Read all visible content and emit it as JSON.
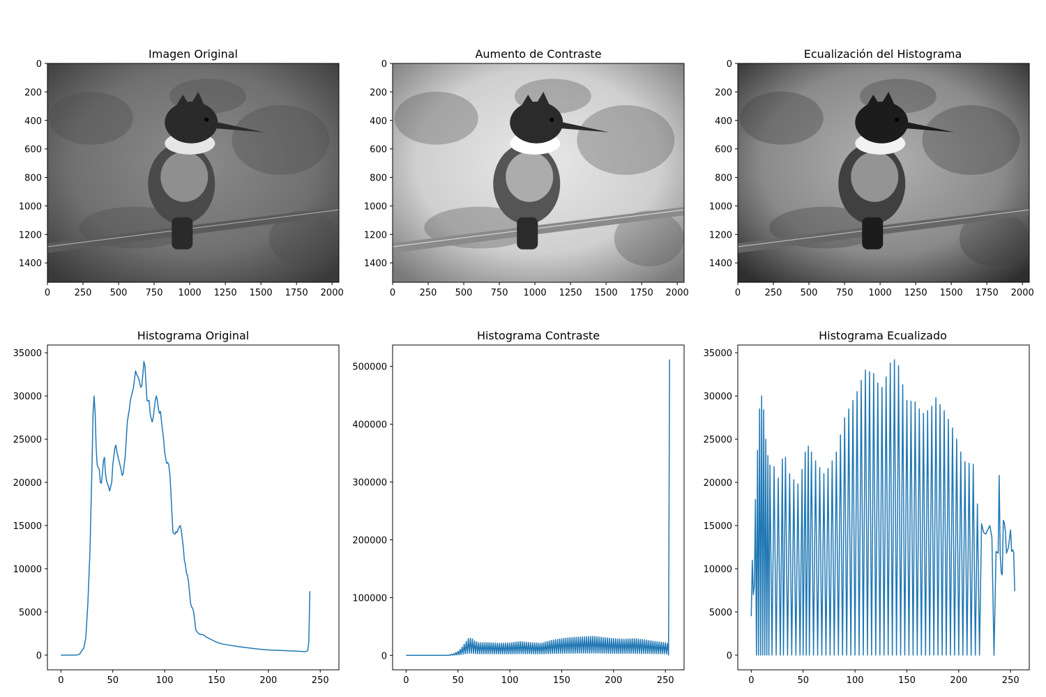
{
  "images": [
    {
      "title": "Imagen Original",
      "variant": "original",
      "xticks": [
        "0",
        "250",
        "500",
        "750",
        "1000",
        "1250",
        "1500",
        "1750",
        "2000"
      ],
      "yticks": [
        "0",
        "200",
        "400",
        "600",
        "800",
        "1000",
        "1200",
        "1400"
      ],
      "xlim": [
        0,
        2048
      ],
      "ylim": [
        1536,
        0
      ]
    },
    {
      "title": "Aumento de Contraste",
      "variant": "contrast",
      "xticks": [
        "0",
        "250",
        "500",
        "750",
        "1000",
        "1250",
        "1500",
        "1750",
        "2000"
      ],
      "yticks": [
        "0",
        "200",
        "400",
        "600",
        "800",
        "1000",
        "1200",
        "1400"
      ],
      "xlim": [
        0,
        2048
      ],
      "ylim": [
        1536,
        0
      ]
    },
    {
      "title": "Ecualización del Histograma",
      "variant": "equalized",
      "xticks": [
        "0",
        "250",
        "500",
        "750",
        "1000",
        "1250",
        "1500",
        "1750",
        "2000"
      ],
      "yticks": [
        "0",
        "200",
        "400",
        "600",
        "800",
        "1000",
        "1200",
        "1400"
      ],
      "xlim": [
        0,
        2048
      ],
      "ylim": [
        1536,
        0
      ]
    }
  ],
  "chart_data": [
    {
      "type": "line",
      "title": "Histograma Original",
      "xlabel": "",
      "ylabel": "",
      "xlim": [
        -13,
        268
      ],
      "ylim": [
        -1700,
        35900
      ],
      "xticks": [
        0,
        50,
        100,
        150,
        200,
        250
      ],
      "yticks": [
        0,
        5000,
        10000,
        15000,
        20000,
        25000,
        30000,
        35000
      ],
      "color": "#1f77b4",
      "points": [
        [
          0,
          0
        ],
        [
          15,
          0
        ],
        [
          18,
          100
        ],
        [
          20,
          500
        ],
        [
          22,
          800
        ],
        [
          24,
          2000
        ],
        [
          26,
          6000
        ],
        [
          28,
          12000
        ],
        [
          30,
          22000
        ],
        [
          31,
          28000
        ],
        [
          32,
          30000
        ],
        [
          33,
          28000
        ],
        [
          34,
          24000
        ],
        [
          35,
          22000
        ],
        [
          37,
          21500
        ],
        [
          38,
          20000
        ],
        [
          39,
          19900
        ],
        [
          40,
          21000
        ],
        [
          41,
          22500
        ],
        [
          42,
          22900
        ],
        [
          43,
          21000
        ],
        [
          44,
          20200
        ],
        [
          45,
          19800
        ],
        [
          46,
          19500
        ],
        [
          47,
          19000
        ],
        [
          48,
          19500
        ],
        [
          49,
          20000
        ],
        [
          50,
          22000
        ],
        [
          52,
          24000
        ],
        [
          53,
          24300
        ],
        [
          54,
          23500
        ],
        [
          56,
          22500
        ],
        [
          58,
          21500
        ],
        [
          59,
          20800
        ],
        [
          60,
          21000
        ],
        [
          62,
          23000
        ],
        [
          64,
          27000
        ],
        [
          66,
          28500
        ],
        [
          67,
          29500
        ],
        [
          68,
          30000
        ],
        [
          69,
          30500
        ],
        [
          70,
          31000
        ],
        [
          71,
          32000
        ],
        [
          72,
          32900
        ],
        [
          73,
          32500
        ],
        [
          74,
          32300
        ],
        [
          75,
          32000
        ],
        [
          76,
          31500
        ],
        [
          77,
          31000
        ],
        [
          78,
          31200
        ],
        [
          79,
          32500
        ],
        [
          80,
          34000
        ],
        [
          81,
          33500
        ],
        [
          82,
          31500
        ],
        [
          83,
          29500
        ],
        [
          84,
          29400
        ],
        [
          85,
          29500
        ],
        [
          86,
          28000
        ],
        [
          87,
          27400
        ],
        [
          88,
          27000
        ],
        [
          89,
          27500
        ],
        [
          90,
          28500
        ],
        [
          91,
          29500
        ],
        [
          92,
          30000
        ],
        [
          93,
          29500
        ],
        [
          94,
          28500
        ],
        [
          95,
          28000
        ],
        [
          96,
          28200
        ],
        [
          97,
          27000
        ],
        [
          98,
          26000
        ],
        [
          99,
          25000
        ],
        [
          100,
          23500
        ],
        [
          101,
          22800
        ],
        [
          102,
          22200
        ],
        [
          103,
          22300
        ],
        [
          104,
          22000
        ],
        [
          105,
          21000
        ],
        [
          106,
          19000
        ],
        [
          107,
          16500
        ],
        [
          108,
          14200
        ],
        [
          109,
          14100
        ],
        [
          110,
          14000
        ],
        [
          111,
          14300
        ],
        [
          112,
          14200
        ],
        [
          113,
          14600
        ],
        [
          114,
          14800
        ],
        [
          115,
          15000
        ],
        [
          116,
          14500
        ],
        [
          117,
          13500
        ],
        [
          118,
          12500
        ],
        [
          119,
          11000
        ],
        [
          120,
          10500
        ],
        [
          121,
          9500
        ],
        [
          122,
          9200
        ],
        [
          123,
          8500
        ],
        [
          124,
          7200
        ],
        [
          125,
          6000
        ],
        [
          126,
          5600
        ],
        [
          127,
          5400
        ],
        [
          128,
          5000
        ],
        [
          129,
          4000
        ],
        [
          130,
          2900
        ],
        [
          132,
          2600
        ],
        [
          134,
          2400
        ],
        [
          136,
          2400
        ],
        [
          138,
          2300
        ],
        [
          140,
          2100
        ],
        [
          145,
          1800
        ],
        [
          150,
          1500
        ],
        [
          155,
          1300
        ],
        [
          160,
          1200
        ],
        [
          170,
          1000
        ],
        [
          180,
          850
        ],
        [
          190,
          700
        ],
        [
          200,
          600
        ],
        [
          210,
          550
        ],
        [
          220,
          500
        ],
        [
          230,
          450
        ],
        [
          235,
          400
        ],
        [
          237,
          450
        ],
        [
          238,
          600
        ],
        [
          239,
          1500
        ],
        [
          240,
          7400
        ]
      ]
    },
    {
      "type": "line",
      "title": "Histograma Contraste",
      "xlabel": "",
      "ylabel": "",
      "xlim": [
        -13,
        268
      ],
      "ylim": [
        -25000,
        537000
      ],
      "xticks": [
        0,
        50,
        100,
        150,
        200,
        250
      ],
      "yticks": [
        0,
        100000,
        200000,
        300000,
        400000,
        500000
      ],
      "color": "#1f77b4",
      "envelope": [
        [
          0,
          0
        ],
        [
          30,
          0
        ],
        [
          38,
          0
        ],
        [
          42,
          1000
        ],
        [
          46,
          3000
        ],
        [
          50,
          7000
        ],
        [
          53,
          12000
        ],
        [
          57,
          22000
        ],
        [
          60,
          29000
        ],
        [
          63,
          30000
        ],
        [
          66,
          25000
        ],
        [
          70,
          22000
        ],
        [
          80,
          22000
        ],
        [
          90,
          21000
        ],
        [
          100,
          21500
        ],
        [
          110,
          24000
        ],
        [
          120,
          22000
        ],
        [
          130,
          21000
        ],
        [
          140,
          26000
        ],
        [
          150,
          29000
        ],
        [
          160,
          31000
        ],
        [
          170,
          32000
        ],
        [
          180,
          33000
        ],
        [
          190,
          31000
        ],
        [
          200,
          29000
        ],
        [
          210,
          28000
        ],
        [
          220,
          29000
        ],
        [
          230,
          27000
        ],
        [
          240,
          24000
        ],
        [
          250,
          22000
        ],
        [
          252,
          21000
        ]
      ],
      "spike": [
        [
          252,
          21000
        ],
        [
          253,
          0
        ],
        [
          254,
          512000
        ]
      ]
    },
    {
      "type": "line",
      "title": "Histograma Ecualizado",
      "xlabel": "",
      "ylabel": "",
      "xlim": [
        -13,
        268
      ],
      "ylim": [
        -1700,
        35900
      ],
      "xticks": [
        0,
        50,
        100,
        150,
        200,
        250
      ],
      "yticks": [
        0,
        5000,
        10000,
        15000,
        20000,
        25000,
        30000,
        35000
      ],
      "color": "#1f77b4",
      "points": [
        [
          0,
          4500
        ],
        [
          1,
          11000
        ],
        [
          2,
          7000
        ],
        [
          3,
          8000
        ],
        [
          4,
          18000
        ],
        [
          5,
          0
        ],
        [
          6,
          23700
        ],
        [
          7,
          0
        ],
        [
          8,
          28500
        ],
        [
          9,
          0
        ],
        [
          10,
          30000
        ],
        [
          11,
          0
        ],
        [
          12,
          28400
        ],
        [
          13,
          0
        ],
        [
          14,
          25000
        ],
        [
          15,
          0
        ],
        [
          16,
          23100
        ],
        [
          17,
          0
        ],
        [
          18,
          22000
        ],
        [
          20,
          0
        ],
        [
          22,
          21800
        ],
        [
          24,
          0
        ],
        [
          26,
          20500
        ],
        [
          28,
          0
        ],
        [
          30,
          22700
        ],
        [
          31,
          0
        ],
        [
          33,
          22900
        ],
        [
          35,
          0
        ],
        [
          37,
          21000
        ],
        [
          39,
          0
        ],
        [
          41,
          20300
        ],
        [
          43,
          0
        ],
        [
          45,
          19800
        ],
        [
          47,
          0
        ],
        [
          49,
          21500
        ],
        [
          50,
          0
        ],
        [
          52,
          23500
        ],
        [
          53,
          0
        ],
        [
          55,
          24200
        ],
        [
          56,
          0
        ],
        [
          58,
          23500
        ],
        [
          60,
          0
        ],
        [
          62,
          22500
        ],
        [
          64,
          0
        ],
        [
          66,
          21700
        ],
        [
          68,
          0
        ],
        [
          70,
          21000
        ],
        [
          72,
          0
        ],
        [
          74,
          21600
        ],
        [
          76,
          0
        ],
        [
          78,
          22500
        ],
        [
          80,
          0
        ],
        [
          82,
          23500
        ],
        [
          84,
          0
        ],
        [
          86,
          25500
        ],
        [
          88,
          0
        ],
        [
          90,
          27500
        ],
        [
          92,
          0
        ],
        [
          94,
          28500
        ],
        [
          96,
          0
        ],
        [
          98,
          29500
        ],
        [
          100,
          0
        ],
        [
          102,
          30500
        ],
        [
          104,
          0
        ],
        [
          106,
          31800
        ],
        [
          108,
          0
        ],
        [
          110,
          33000
        ],
        [
          112,
          0
        ],
        [
          114,
          32800
        ],
        [
          116,
          0
        ],
        [
          118,
          32600
        ],
        [
          120,
          0
        ],
        [
          122,
          31500
        ],
        [
          124,
          0
        ],
        [
          126,
          31000
        ],
        [
          128,
          0
        ],
        [
          130,
          32200
        ],
        [
          132,
          0
        ],
        [
          134,
          33800
        ],
        [
          136,
          0
        ],
        [
          138,
          34200
        ],
        [
          140,
          0
        ],
        [
          142,
          33500
        ],
        [
          144,
          0
        ],
        [
          146,
          31300
        ],
        [
          148,
          0
        ],
        [
          150,
          29500
        ],
        [
          152,
          0
        ],
        [
          154,
          29400
        ],
        [
          156,
          0
        ],
        [
          158,
          29300
        ],
        [
          160,
          0
        ],
        [
          162,
          28500
        ],
        [
          164,
          0
        ],
        [
          166,
          28000
        ],
        [
          168,
          0
        ],
        [
          170,
          28300
        ],
        [
          172,
          0
        ],
        [
          174,
          28800
        ],
        [
          176,
          0
        ],
        [
          178,
          29800
        ],
        [
          180,
          0
        ],
        [
          182,
          29000
        ],
        [
          184,
          0
        ],
        [
          186,
          28300
        ],
        [
          188,
          0
        ],
        [
          190,
          27300
        ],
        [
          192,
          0
        ],
        [
          194,
          26300
        ],
        [
          196,
          0
        ],
        [
          198,
          25000
        ],
        [
          200,
          0
        ],
        [
          202,
          23500
        ],
        [
          204,
          0
        ],
        [
          206,
          22400
        ],
        [
          208,
          0
        ],
        [
          210,
          22200
        ],
        [
          212,
          0
        ],
        [
          214,
          22100
        ],
        [
          216,
          0
        ],
        [
          218,
          17500
        ],
        [
          220,
          0
        ],
        [
          222,
          15200
        ],
        [
          224,
          14200
        ],
        [
          226,
          14000
        ],
        [
          228,
          14500
        ],
        [
          230,
          15000
        ],
        [
          232,
          13600
        ],
        [
          234,
          0
        ],
        [
          236,
          12000
        ],
        [
          238,
          11800
        ],
        [
          239,
          20800
        ],
        [
          240,
          11700
        ],
        [
          241,
          9500
        ],
        [
          242,
          9300
        ],
        [
          243,
          15600
        ],
        [
          244,
          15300
        ],
        [
          245,
          14300
        ],
        [
          246,
          11800
        ],
        [
          248,
          12500
        ],
        [
          250,
          14500
        ],
        [
          251,
          12000
        ],
        [
          252,
          12200
        ],
        [
          253,
          11900
        ],
        [
          254,
          7400
        ]
      ]
    }
  ]
}
